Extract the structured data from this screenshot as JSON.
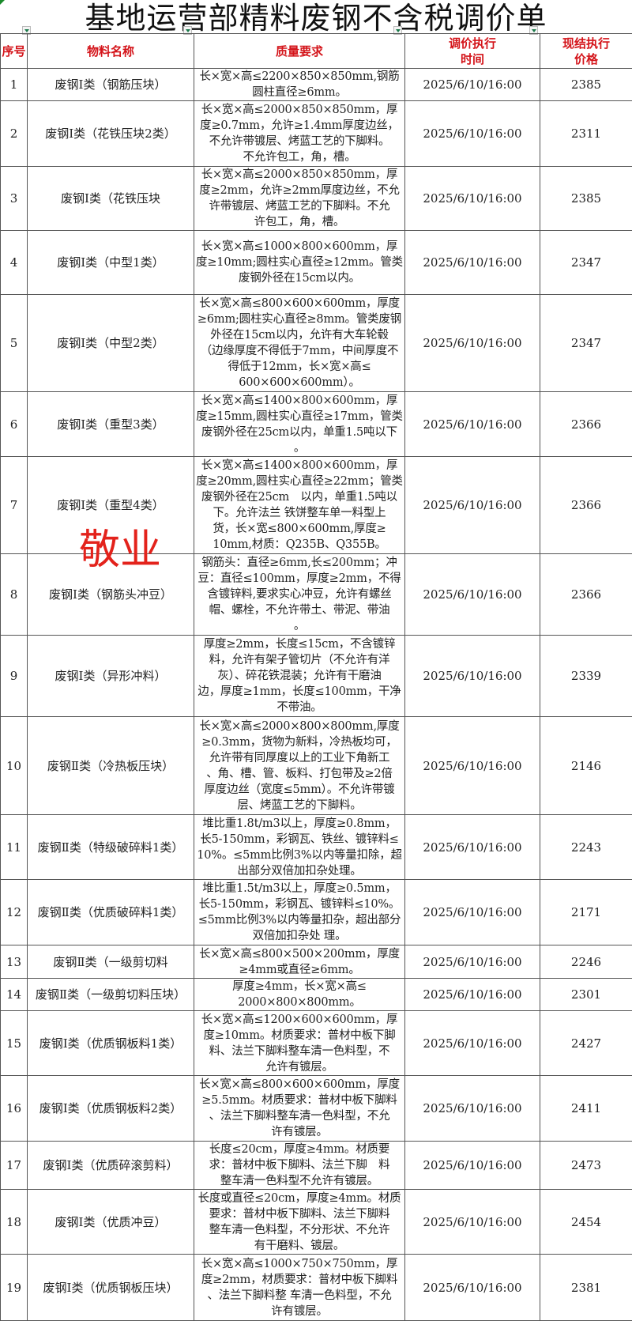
{
  "title": "基地运营部精料废钢不含税调价单",
  "watermark": "敬业",
  "colors": {
    "header_text": "#d4141a",
    "watermark": "#e3221b",
    "border": "#555555"
  },
  "headers": {
    "seq": "序号",
    "name": "物料名称",
    "quality": "质量要求",
    "time": "调价执行\n时间",
    "price": "现结执行\n价格"
  },
  "rows": [
    {
      "seq": "1",
      "name": "废钢Ⅰ类（钢筋压块）",
      "quality": "长×宽×高≤2200×850×850mm,钢筋\n圆柱直径≥6mm。",
      "time": "2025/6/10/16:00",
      "price": "2385"
    },
    {
      "seq": "2",
      "name": "废钢Ⅰ类（花铁压块2类）",
      "quality": "长×宽×高≤2000×850×850mm，厚\n度≥0.7mm，允许≥1.4mm厚度边丝，\n不允许带镀层、烤蓝工艺的下脚料。\n不允许包工，角，槽。",
      "time": "2025/6/10/16:00",
      "price": "2311"
    },
    {
      "seq": "3",
      "name": "废钢Ⅰ类（花铁压块",
      "quality": "长×宽×高≤2000×850×850mm，厚\n度≥2mm，允许≥2mm厚度边丝，不允\n许带镀层、烤蓝工艺的下脚料。不允\n许包工，角，槽。",
      "time": "2025/6/10/16:00",
      "price": "2385"
    },
    {
      "seq": "4",
      "name": "废钢Ⅰ类（中型1类）",
      "quality": "长×宽×高≤1000×800×600mm，厚\n度≥10mm;圆柱实心直径≥12mm。管类\n废钢外径在15cm以内。",
      "time": "2025/6/10/16:00",
      "price": "2347"
    },
    {
      "seq": "5",
      "name": "废钢Ⅰ类（中型2类）",
      "quality": "长×宽×高≤800×600×600mm，厚度\n≥6mm;圆柱实心直径≥8mm。管类废钢\n外径在15cm以内，允许有大车轮毂\n（边缘厚度不得低于7mm，中间厚度不\n得低于12mm，长×宽×高≤\n600×600×600mm）。",
      "time": "2025/6/10/16:00",
      "price": "2347"
    },
    {
      "seq": "6",
      "name": "废钢Ⅰ类（重型3类）",
      "quality": "长×宽×高≤1400×800×600mm，厚\n度≥15mm,圆柱实心直径≥17mm，管类\n废钢外径在25cm以内，单重1.5吨以下\n。",
      "time": "2025/6/10/16:00",
      "price": "2366"
    },
    {
      "seq": "7",
      "name": "废钢Ⅰ类（重型4类）",
      "quality": "长×宽×高≤1400×800×600mm，厚\n度≥20mm,圆柱实心直径≥22mm；管类\n废钢外径在25cm　以内，单重1.5吨以\n下。允许法兰 铁饼整车单一料型上\n货，长×宽≤800×600mm,厚度≥\n10mm,材质：Q235B、Q355B。",
      "time": "2025/6/10/16:00",
      "price": "2366"
    },
    {
      "seq": "8",
      "name": "废钢Ⅰ类（钢筋头冲豆）",
      "quality": "钢筋头：直径≥6mm,长≤200mm；冲\n豆：直径≤100mm，厚度≥2mm，不得\n含镀锌料,要求实心冲豆，允许有螺丝\n帽、螺栓，不允许带土、带泥、带油\n。",
      "time": "2025/6/10/16:00",
      "price": "2366"
    },
    {
      "seq": "9",
      "name": "废钢Ⅰ类（异形冲料）",
      "quality": "厚度≥2mm，长度≤15cm，不含镀锌\n料，允许有架子管切片（不允许有洋\n灰）、碎花铁混装；允许有干磨油\n边，厚度≥1mm，长度≤100mm，干净\n不带油。",
      "time": "2025/6/10/16:00",
      "price": "2339"
    },
    {
      "seq": "10",
      "name": "废钢Ⅱ类（冷热板压块）",
      "quality": "长×宽×高≤2000×800×800mm,厚度\n≥0.3mm，货物为新料，冷热板均可，\n允许带有同厚度以上的工业下角新工\n、角、槽、管、板料、打包带及≥2倍\n厚度边丝（宽度≤5mm）。不允许带镀\n层、烤蓝工艺的下脚料。",
      "time": "2025/6/10/16:00",
      "price": "2146"
    },
    {
      "seq": "11",
      "name": "废钢Ⅱ类（特级破碎料1类）",
      "quality": "堆比重1.8t/m3以上，厚度≥0.8mm，\n长5-150mm，彩钢瓦、铁丝、镀锌料≤\n10%。≤5mm比例3%以内等量扣除，超\n出部分双倍加扣杂处理。",
      "time": "2025/6/10/16:00",
      "price": "2243"
    },
    {
      "seq": "12",
      "name": "废钢Ⅱ类（优质破碎料1类）",
      "quality": "堆比重1.5t/m3以上，厚度≥0.5mm，\n长5-150mm，彩钢瓦、镀锌料≤10%。\n≤5mm比例3%以内等量扣杂，超出部分\n双倍加扣杂处 理。",
      "time": "2025/6/10/16:00",
      "price": "2171"
    },
    {
      "seq": "13",
      "name": "废钢Ⅱ类（一级剪切料",
      "quality": "长×宽×高≤800×500×200mm，厚度\n≥4mm或直径≥6mm。",
      "time": "2025/6/10/16:00",
      "price": "2246"
    },
    {
      "seq": "14",
      "name": "废钢Ⅱ类（一级剪切料压块）",
      "quality": "厚度≥4mm，长×宽×高≤\n2000×800×800mm。",
      "time": "2025/6/10/16:00",
      "price": "2301"
    },
    {
      "seq": "15",
      "name": "废钢Ⅰ类（优质钢板料1类）",
      "quality": "长×宽×高≤1200×600×600mm，厚\n度≥10mm。材质要求：普材中板下脚\n料、法兰下脚料整车清一色料型，不\n允许有镀层。",
      "time": "2025/6/10/16:00",
      "price": "2427"
    },
    {
      "seq": "16",
      "name": "废钢Ⅰ类（优质钢板料2类）",
      "quality": "长×宽×高≤800×600×600mm，厚度\n≥5.5mm。材质要求：普材中板下脚料\n、法兰下脚料整车清一色料型，不允\n许有镀层。",
      "time": "2025/6/10/16:00",
      "price": "2411"
    },
    {
      "seq": "17",
      "name": "废钢Ⅰ类（优质碎滚剪料）",
      "quality": "长度≤20cm，厚度≥4mm。材质要\n求：普材中板下脚料、法兰下脚　料\n整车清一色料型不允许有镀层。",
      "time": "2025/6/10/16:00",
      "price": "2473"
    },
    {
      "seq": "18",
      "name": "废钢Ⅰ类（优质冲豆）",
      "quality": "长度或直径≤20cm，厚度≥4mm。材质\n要求：普材中板下脚料、法兰下脚料\n整车清一色料型，不分形状、不允许\n有干磨料、镀层。",
      "time": "2025/6/10/16:00",
      "price": "2454"
    },
    {
      "seq": "19",
      "name": "废钢Ⅰ类（优质钢板压块）",
      "quality": "长×宽×高≤1000×750×750mm，厚\n度≥2mm，材质要求：普材中板下脚料\n、法兰下脚料整 车清一色料型，不允\n许有镀层。",
      "time": "2025/6/10/16:00",
      "price": "2381"
    }
  ]
}
